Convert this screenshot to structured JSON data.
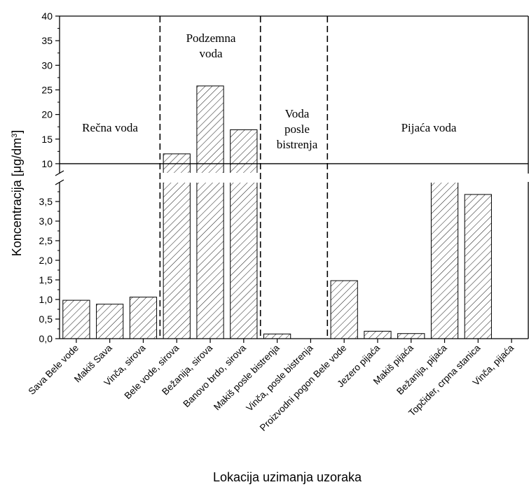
{
  "chart_data": {
    "type": "bar",
    "xlabel": "Lokacija uzimanja uzoraka",
    "ylabel_main": "Koncentracija [μg/dm",
    "ylabel_sup": "3",
    "ylabel_end": "]",
    "y_axis": {
      "type": "broken",
      "lower_range": [
        0,
        4
      ],
      "upper_range": [
        8,
        40
      ],
      "lower_ticks": [
        "0,0",
        "0,5",
        "1,0",
        "1,5",
        "2,0",
        "2,5",
        "3,0",
        "3,5"
      ],
      "lower_tick_values": [
        0,
        0.5,
        1.0,
        1.5,
        2.0,
        2.5,
        3.0,
        3.5
      ],
      "upper_ticks": [
        "10",
        "15",
        "20",
        "25",
        "30",
        "35",
        "40"
      ],
      "upper_tick_values": [
        10,
        15,
        20,
        25,
        30,
        35,
        40
      ]
    },
    "categories": [
      "Sava Bele vode",
      "Makiš Sava",
      "Vinča, sirova",
      "Bele vode, sirova",
      "Bežanija, sirova",
      "Banovo brdo, sirova",
      "Makiš posle bistrenja",
      "Vinča, posle bistrenja",
      "Proizvodni pogon Bele vode",
      "Jezero pijaća",
      "Makiš pijaća",
      "Bežanija, pijaća",
      "Topčider, crpna stanica",
      "Vinča, pijaća"
    ],
    "values": [
      0.98,
      0.88,
      1.06,
      12.0,
      25.8,
      16.9,
      0.12,
      0,
      1.48,
      0.19,
      0.13,
      8.0,
      3.68,
      0
    ],
    "regions": [
      {
        "label_lines": [
          "Rečna voda"
        ],
        "start": 0,
        "end": 2
      },
      {
        "label_lines": [
          "Podzemna",
          "voda"
        ],
        "start": 3,
        "end": 5
      },
      {
        "label_lines": [
          "Voda",
          "posle",
          "bistrenja"
        ],
        "start": 6,
        "end": 7
      },
      {
        "label_lines": [
          "Pijaća voda"
        ],
        "start": 8,
        "end": 13
      }
    ],
    "grid": false,
    "legend": "none",
    "bar_pattern": "diagonal-hatch"
  }
}
